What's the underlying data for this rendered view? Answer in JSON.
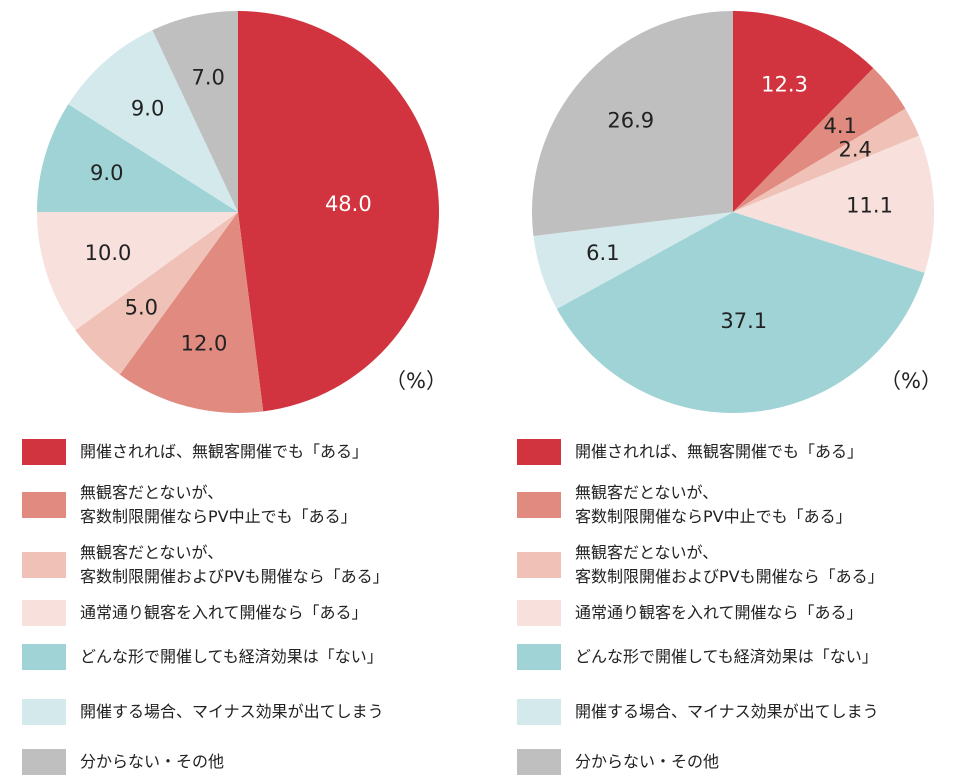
{
  "chart_data": [
    {
      "type": "pie",
      "unit": "（%）",
      "categories": [
        "開催されれば、無観客開催でも「ある」",
        "無観客だとないが、\n客数制限開催ならPV中止でも「ある」",
        "無観客だとないが、\n客数制限開催およびPVも開催なら「ある」",
        "通常通り観客を入れて開催なら「ある」",
        "どんな形で開催しても経済効果は「ない」",
        "開催する場合、マイナス効果が出てしまう",
        "分からない・その他"
      ],
      "values": [
        48,
        12,
        5,
        10,
        9,
        9,
        7
      ],
      "value_labels": [
        "48.0",
        "12.0",
        "5.0",
        "10.0",
        "9.0",
        "9.0",
        "7.0"
      ],
      "colors": [
        "#d1343f",
        "#e08a80",
        "#f0c1b7",
        "#f8e0dc",
        "#9fd3d6",
        "#d3e9ec",
        "#bfbfbf"
      ]
    },
    {
      "type": "pie",
      "unit": "（%）",
      "categories": [
        "開催されれば、無観客開催でも「ある」",
        "無観客だとないが、\n客数制限開催ならPV中止でも「ある」",
        "無観客だとないが、\n客数制限開催およびPVも開催なら「ある」",
        "通常通り観客を入れて開催なら「ある」",
        "どんな形で開催しても経済効果は「ない」",
        "開催する場合、マイナス効果が出てしまう",
        "分からない・その他"
      ],
      "values": [
        12.3,
        4.1,
        2.4,
        11.1,
        37.1,
        6.1,
        26.9
      ],
      "colors": [
        "#d1343f",
        "#e08a80",
        "#f0c1b7",
        "#f8e0dc",
        "#9fd3d6",
        "#d3e9ec",
        "#bfbfbf"
      ]
    }
  ]
}
